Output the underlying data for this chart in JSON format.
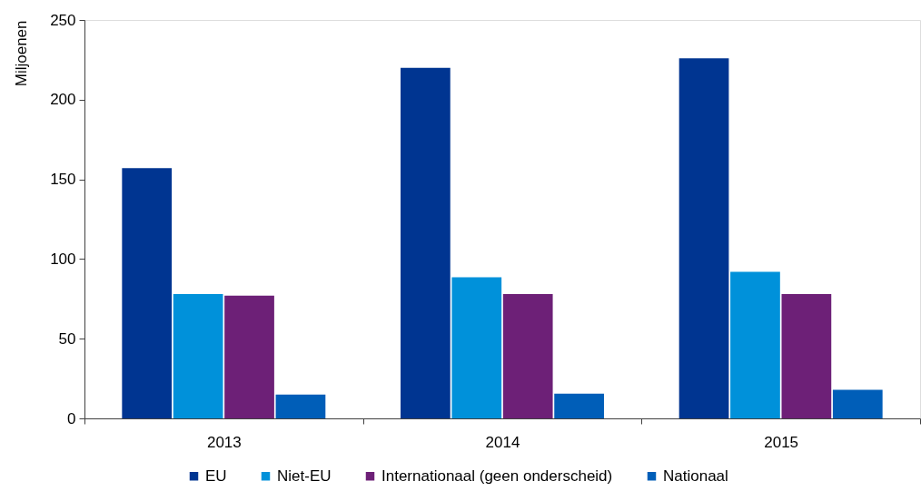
{
  "chart_data": {
    "type": "bar",
    "ylabel": "Miljoenen",
    "categories": [
      "2013",
      "2014",
      "2015"
    ],
    "series": [
      {
        "name": "EU",
        "color": "#003591",
        "values": [
          157,
          220,
          226
        ]
      },
      {
        "name": "Niet-EU",
        "color": "#0091da",
        "values": [
          78,
          88.5,
          92
        ]
      },
      {
        "name": "Internationaal (geen onderscheid)",
        "color": "#6d2077",
        "values": [
          77,
          78,
          78
        ]
      },
      {
        "name": "Nationaal",
        "color": "#005eb8",
        "values": [
          15,
          15.5,
          18
        ]
      }
    ],
    "ylim": [
      0,
      250
    ],
    "yticks": [
      0,
      50,
      100,
      150,
      200,
      250
    ],
    "legend": "bottom"
  }
}
